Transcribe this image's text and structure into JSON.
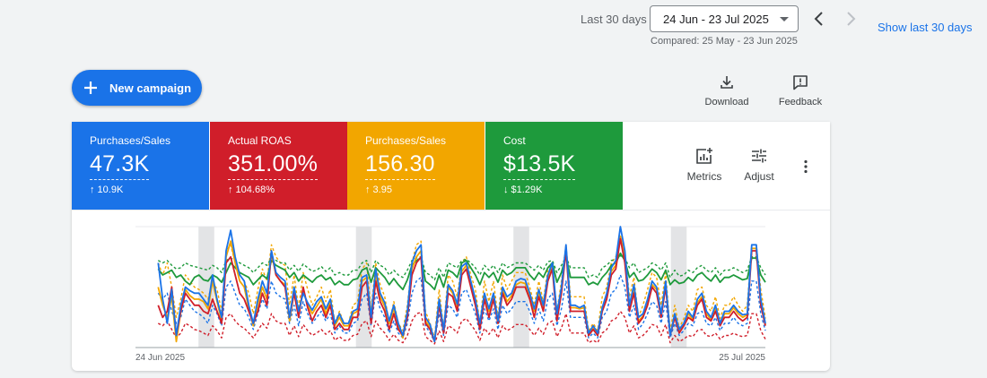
{
  "date_range": {
    "label": "Last 30 days",
    "selected": "24 Jun - 23 Jul 2025",
    "compared": "Compared: 25 May - 23 Jun 2025",
    "show_last": "Show last 30 days"
  },
  "actions": {
    "new_campaign": "New campaign",
    "download": "Download",
    "feedback": "Feedback"
  },
  "icons": {
    "prev": "chevron-left-icon",
    "next": "chevron-right-icon",
    "plus": "plus-icon",
    "download": "download-icon",
    "feedback": "feedback-icon",
    "metrics": "add-chart-icon",
    "adjust": "tune-icon",
    "more": "more-vert-icon"
  },
  "scorecards": [
    {
      "name": "Purchases/Sales",
      "value": "47.3K",
      "delta": "↑ 10.9K",
      "color": "#1a73e8"
    },
    {
      "name": "Actual ROAS",
      "value": "351.00%",
      "delta": "↑ 104.68%",
      "color": "#d01e2a"
    },
    {
      "name": "Purchases/Sales",
      "value": "156.30",
      "delta": "↑ 3.95",
      "color": "#f2a600"
    },
    {
      "name": "Cost",
      "value": "$13.5K",
      "delta": "↓ $1.29K",
      "color": "#1e9a3c"
    }
  ],
  "card_tools": {
    "metrics": "Metrics",
    "adjust": "Adjust"
  },
  "chart_data": {
    "type": "line",
    "x_start_label": "24 Jun 2025",
    "x_end_label": "25 Jul 2025",
    "y_range": [
      0,
      100
    ],
    "grid": false,
    "weekend_bands_day_index": [
      [
        4,
        5
      ],
      [
        14,
        15
      ],
      [
        24,
        25
      ],
      [
        34,
        35
      ]
    ],
    "series": [
      {
        "color": "#1a73e8",
        "dashed": false,
        "values": [
          null,
          null,
          null,
          null,
          null,
          70,
          40,
          20,
          48,
          10,
          35,
          50,
          47,
          45,
          45,
          40,
          35,
          60,
          40,
          25,
          80,
          97,
          75,
          60,
          55,
          35,
          20,
          40,
          55,
          45,
          80,
          62,
          58,
          55,
          25,
          50,
          30,
          45,
          37,
          31,
          38,
          42,
          32,
          40,
          20,
          28,
          20,
          20,
          30,
          32,
          58,
          60,
          25,
          65,
          45,
          37,
          22,
          35,
          20,
          10,
          30,
          70,
          80,
          85,
          25,
          19,
          5,
          40,
          15,
          52,
          47,
          36,
          67,
          70,
          55,
          40,
          20,
          45,
          32,
          45,
          22,
          50,
          42,
          45,
          55,
          57,
          56,
          45,
          32,
          48,
          35,
          60,
          70,
          28,
          50,
          85,
          35,
          35,
          33,
          35,
          12,
          18,
          12,
          33,
          45,
          66,
          72,
          100,
          80,
          35,
          52,
          25,
          28,
          40,
          55,
          50,
          28,
          55,
          10,
          28,
          15,
          20,
          30,
          25,
          40,
          45,
          30,
          25,
          35,
          20,
          30,
          30,
          35,
          30,
          27,
          28,
          85,
          85,
          40,
          20
        ]
      },
      {
        "color": "#d01e2a",
        "dashed": false,
        "values": [
          null,
          null,
          null,
          null,
          null,
          35,
          25,
          30,
          50,
          10,
          30,
          45,
          40,
          35,
          35,
          30,
          28,
          40,
          30,
          20,
          70,
          75,
          60,
          45,
          40,
          30,
          20,
          30,
          45,
          35,
          80,
          60,
          55,
          50,
          25,
          45,
          25,
          50,
          33,
          22,
          30,
          35,
          25,
          35,
          15,
          20,
          15,
          15,
          25,
          25,
          50,
          55,
          20,
          55,
          38,
          30,
          15,
          28,
          15,
          10,
          25,
          60,
          70,
          75,
          20,
          15,
          5,
          35,
          12,
          45,
          42,
          30,
          60,
          65,
          50,
          35,
          15,
          40,
          25,
          40,
          20,
          45,
          35,
          40,
          50,
          50,
          50,
          40,
          25,
          42,
          30,
          55,
          65,
          22,
          45,
          80,
          30,
          30,
          30,
          30,
          10,
          15,
          10,
          30,
          40,
          60,
          65,
          90,
          70,
          30,
          45,
          20,
          25,
          35,
          50,
          45,
          25,
          50,
          10,
          25,
          12,
          18,
          25,
          22,
          35,
          40,
          25,
          22,
          30,
          18,
          25,
          25,
          30,
          25,
          22,
          25,
          80,
          80,
          35,
          18
        ]
      },
      {
        "color": "#f2a600",
        "dashed": false,
        "values": [
          null,
          null,
          null,
          null,
          null,
          50,
          35,
          25,
          42,
          5,
          30,
          48,
          43,
          40,
          40,
          38,
          32,
          55,
          38,
          22,
          75,
          88,
          70,
          55,
          50,
          32,
          18,
          36,
          50,
          40,
          78,
          60,
          55,
          52,
          22,
          46,
          26,
          48,
          35,
          28,
          34,
          40,
          28,
          38,
          18,
          25,
          18,
          18,
          28,
          30,
          55,
          58,
          22,
          60,
          42,
          34,
          20,
          32,
          18,
          8,
          28,
          65,
          75,
          80,
          22,
          17,
          5,
          38,
          13,
          50,
          45,
          33,
          63,
          68,
          53,
          38,
          18,
          43,
          30,
          43,
          20,
          48,
          38,
          43,
          52,
          54,
          53,
          42,
          30,
          45,
          32,
          57,
          68,
          25,
          48,
          82,
          33,
          33,
          32,
          33,
          10,
          16,
          10,
          32,
          42,
          63,
          68,
          92,
          75,
          33,
          48,
          22,
          26,
          37,
          52,
          48,
          26,
          52,
          10,
          26,
          13,
          19,
          28,
          23,
          37,
          42,
          28,
          23,
          33,
          19,
          28,
          28,
          33,
          28,
          25,
          27,
          82,
          82,
          38,
          19
        ]
      },
      {
        "color": "#1e9a3c",
        "dashed": false,
        "values": [
          null,
          null,
          null,
          null,
          null,
          65,
          60,
          62,
          64,
          58,
          60,
          55,
          52,
          58,
          60,
          56,
          55,
          60,
          58,
          54,
          62,
          70,
          66,
          62,
          60,
          58,
          52,
          56,
          60,
          57,
          72,
          68,
          66,
          64,
          58,
          62,
          55,
          60,
          57,
          54,
          58,
          60,
          56,
          58,
          52,
          55,
          52,
          52,
          56,
          57,
          64,
          66,
          54,
          66,
          62,
          58,
          52,
          57,
          52,
          48,
          56,
          68,
          72,
          74,
          55,
          52,
          48,
          60,
          50,
          64,
          62,
          58,
          70,
          72,
          66,
          60,
          52,
          62,
          58,
          62,
          54,
          64,
          60,
          62,
          66,
          66,
          66,
          60,
          56,
          62,
          58,
          66,
          70,
          54,
          62,
          76,
          58,
          58,
          58,
          58,
          52,
          54,
          52,
          58,
          62,
          68,
          70,
          78,
          72,
          58,
          62,
          55,
          56,
          60,
          65,
          62,
          56,
          64,
          52,
          56,
          53,
          54,
          58,
          55,
          60,
          62,
          58,
          55,
          60,
          54,
          58,
          58,
          60,
          58,
          56,
          57,
          74,
          74,
          60,
          54
        ]
      },
      {
        "color": "#1a73e8",
        "dashed": true,
        "values": [
          null,
          null,
          null,
          null,
          null,
          45,
          40,
          45,
          30,
          20,
          25,
          40,
          35,
          30,
          28,
          25,
          20,
          35,
          28,
          18,
          50,
          55,
          45,
          35,
          32,
          25,
          15,
          28,
          40,
          32,
          55,
          45,
          42,
          40,
          20,
          35,
          18,
          38,
          28,
          20,
          25,
          30,
          22,
          28,
          12,
          18,
          12,
          12,
          20,
          22,
          40,
          45,
          18,
          45,
          32,
          25,
          12,
          22,
          12,
          8,
          20,
          45,
          55,
          58,
          18,
          12,
          5,
          28,
          10,
          35,
          32,
          25,
          45,
          48,
          38,
          28,
          12,
          32,
          22,
          32,
          15,
          35,
          28,
          32,
          38,
          38,
          38,
          30,
          20,
          32,
          22,
          40,
          45,
          18,
          32,
          55,
          25,
          25,
          25,
          25,
          8,
          12,
          8,
          25,
          30,
          45,
          48,
          60,
          50,
          25,
          35,
          15,
          20,
          28,
          38,
          35,
          20,
          38,
          8,
          20,
          10,
          14,
          20,
          18,
          28,
          30,
          20,
          18,
          25,
          14,
          20,
          20,
          25,
          20,
          18,
          20,
          55,
          55,
          28,
          14
        ]
      },
      {
        "color": "#d01e2a",
        "dashed": true,
        "values": [
          null,
          null,
          null,
          null,
          null,
          20,
          18,
          22,
          15,
          8,
          12,
          20,
          18,
          15,
          14,
          12,
          10,
          18,
          14,
          8,
          25,
          28,
          22,
          18,
          16,
          12,
          8,
          14,
          20,
          16,
          28,
          22,
          20,
          20,
          10,
          18,
          9,
          19,
          14,
          10,
          12,
          15,
          11,
          14,
          6,
          9,
          6,
          6,
          10,
          11,
          20,
          22,
          9,
          22,
          16,
          12,
          6,
          11,
          6,
          4,
          10,
          22,
          28,
          29,
          9,
          6,
          3,
          14,
          5,
          18,
          16,
          12,
          22,
          24,
          19,
          14,
          6,
          16,
          11,
          16,
          8,
          18,
          14,
          16,
          19,
          19,
          19,
          15,
          10,
          16,
          11,
          20,
          22,
          9,
          16,
          28,
          12,
          12,
          12,
          12,
          4,
          6,
          4,
          12,
          15,
          22,
          24,
          30,
          25,
          12,
          18,
          8,
          10,
          14,
          19,
          18,
          10,
          19,
          4,
          10,
          5,
          7,
          10,
          9,
          14,
          15,
          10,
          9,
          12,
          7,
          10,
          10,
          12,
          10,
          9,
          10,
          28,
          28,
          14,
          7
        ]
      },
      {
        "color": "#f2a600",
        "dashed": true,
        "values": [
          null,
          null,
          null,
          null,
          null,
          70,
          60,
          70,
          50,
          25,
          40,
          60,
          55,
          50,
          48,
          45,
          40,
          55,
          48,
          30,
          80,
          85,
          70,
          60,
          55,
          45,
          28,
          48,
          65,
          55,
          85,
          75,
          70,
          68,
          35,
          60,
          32,
          62,
          48,
          35,
          42,
          50,
          38,
          48,
          20,
          30,
          20,
          20,
          35,
          38,
          65,
          70,
          30,
          70,
          52,
          42,
          20,
          38,
          20,
          14,
          35,
          70,
          85,
          88,
          30,
          20,
          8,
          48,
          16,
          60,
          55,
          42,
          70,
          75,
          60,
          48,
          20,
          55,
          38,
          55,
          25,
          60,
          48,
          55,
          62,
          62,
          62,
          50,
          35,
          55,
          38,
          65,
          70,
          30,
          55,
          85,
          42,
          42,
          42,
          42,
          14,
          20,
          14,
          42,
          50,
          70,
          75,
          90,
          80,
          42,
          58,
          25,
          35,
          48,
          62,
          58,
          35,
          62,
          14,
          35,
          16,
          24,
          35,
          30,
          48,
          50,
          35,
          30,
          42,
          24,
          35,
          35,
          42,
          35,
          30,
          35,
          85,
          85,
          48,
          24
        ]
      },
      {
        "color": "#1e9a3c",
        "dashed": true,
        "values": [
          null,
          null,
          null,
          null,
          null,
          72,
          70,
          72,
          68,
          65,
          66,
          70,
          68,
          67,
          66,
          65,
          64,
          68,
          66,
          62,
          72,
          74,
          72,
          70,
          68,
          66,
          62,
          66,
          70,
          68,
          74,
          72,
          70,
          70,
          64,
          68,
          63,
          69,
          66,
          63,
          64,
          67,
          63,
          66,
          60,
          62,
          60,
          60,
          64,
          64,
          70,
          72,
          62,
          72,
          68,
          66,
          60,
          64,
          60,
          58,
          64,
          72,
          74,
          75,
          62,
          60,
          56,
          66,
          58,
          70,
          68,
          66,
          72,
          73,
          70,
          66,
          60,
          68,
          64,
          68,
          62,
          70,
          66,
          68,
          70,
          70,
          70,
          67,
          64,
          68,
          64,
          71,
          72,
          62,
          68,
          75,
          66,
          66,
          66,
          66,
          58,
          60,
          58,
          66,
          68,
          72,
          73,
          76,
          74,
          66,
          70,
          62,
          64,
          66,
          70,
          68,
          64,
          70,
          58,
          64,
          59,
          60,
          64,
          62,
          66,
          68,
          64,
          62,
          66,
          60,
          64,
          64,
          66,
          64,
          62,
          64,
          75,
          75,
          66,
          60
        ]
      }
    ]
  }
}
